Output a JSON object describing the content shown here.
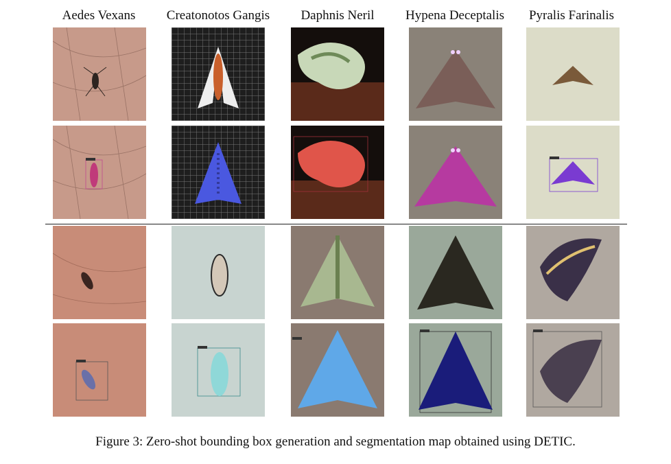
{
  "columns": [
    "Aedes Vexans",
    "Creatonotos Gangis",
    "Daphnis Neril",
    "Hypena Deceptalis",
    "Pyralis Farinalis"
  ],
  "caption": "Figure 3: Zero-shot bounding box generation and segmentation map obtained using DETIC.",
  "colors": {
    "skin": "#c89a8c",
    "mesh": "#2a2a2a",
    "seg_blue": "#4a58e0",
    "seg_red": "#e0554a",
    "seg_magenta": "#b63aa0",
    "seg_purple": "#7a3bd1",
    "seg_cyan": "#8fd8d8",
    "seg_lightblue": "#5fa8e8",
    "seg_navy": "#1a1c7a"
  }
}
